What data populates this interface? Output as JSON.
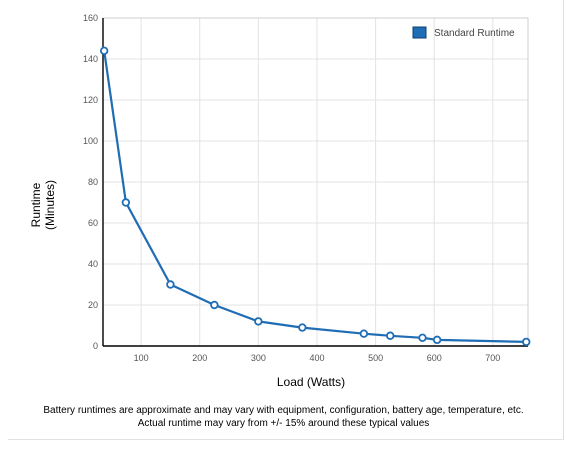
{
  "chart_data": {
    "type": "line",
    "title": "",
    "xlabel": "Load (Watts)",
    "ylabel": [
      "Runtime",
      "(Minutes)"
    ],
    "xlim": [
      35,
      760
    ],
    "ylim": [
      0,
      160
    ],
    "x_ticks": [
      100,
      200,
      300,
      400,
      500,
      600,
      700
    ],
    "y_ticks": [
      0,
      20,
      40,
      60,
      80,
      100,
      120,
      140,
      160
    ],
    "grid": true,
    "legend_position": "top-right",
    "series": [
      {
        "name": "Standard Runtime",
        "color": "#1f6db5",
        "x": [
          37,
          74,
          150,
          225,
          300,
          375,
          480,
          525,
          580,
          605,
          757
        ],
        "y": [
          144,
          70,
          30,
          20,
          12,
          9,
          6,
          5,
          4,
          3,
          2
        ]
      }
    ]
  },
  "footnote": {
    "line1": "Battery runtimes are approximate and may vary with equipment, configuration, battery age, temperature, etc.",
    "line2": "Actual runtime may vary from +/- 15% around these typical values"
  }
}
